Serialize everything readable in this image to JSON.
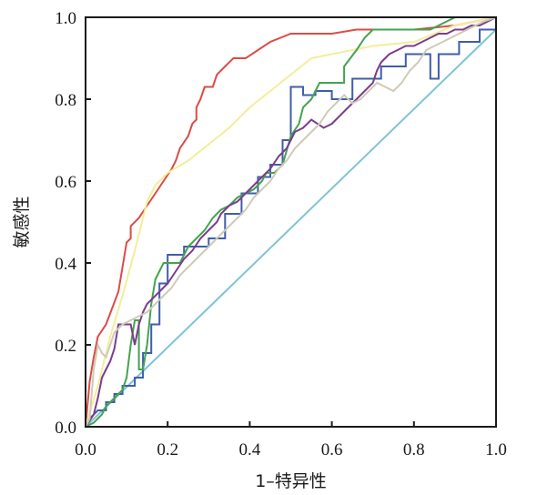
{
  "chart_data": {
    "type": "line",
    "xlabel": "1–特异性",
    "ylabel": "敏感性",
    "xlim": [
      0,
      1
    ],
    "ylim": [
      0,
      1
    ],
    "xticks": [
      0.0,
      0.2,
      0.4,
      0.6,
      0.8,
      1.0
    ],
    "yticks": [
      0.0,
      0.2,
      0.4,
      0.6,
      0.8,
      1.0
    ],
    "xtick_labels": [
      "0.0",
      "0.2",
      "0.4",
      "0.6",
      "0.8",
      "1.0"
    ],
    "ytick_labels": [
      "0.0",
      "0.2",
      "0.4",
      "0.6",
      "0.8",
      "1.0"
    ],
    "grid": false,
    "series": [
      {
        "color": "#7ec4d6",
        "points": [
          [
            0.0,
            0.0
          ],
          [
            1.0,
            0.97
          ]
        ]
      },
      {
        "color": "#dd4b45",
        "points": [
          [
            0.0,
            0.0
          ],
          [
            0.01,
            0.11
          ],
          [
            0.02,
            0.17
          ],
          [
            0.03,
            0.22
          ],
          [
            0.05,
            0.25
          ],
          [
            0.08,
            0.33
          ],
          [
            0.1,
            0.45
          ],
          [
            0.11,
            0.46
          ],
          [
            0.11,
            0.49
          ],
          [
            0.13,
            0.51
          ],
          [
            0.15,
            0.54
          ],
          [
            0.17,
            0.57
          ],
          [
            0.19,
            0.6
          ],
          [
            0.21,
            0.63
          ],
          [
            0.22,
            0.65
          ],
          [
            0.23,
            0.68
          ],
          [
            0.25,
            0.71
          ],
          [
            0.26,
            0.74
          ],
          [
            0.27,
            0.75
          ],
          [
            0.27,
            0.78
          ],
          [
            0.28,
            0.8
          ],
          [
            0.29,
            0.83
          ],
          [
            0.31,
            0.83
          ],
          [
            0.32,
            0.86
          ],
          [
            0.34,
            0.88
          ],
          [
            0.36,
            0.9
          ],
          [
            0.39,
            0.9
          ],
          [
            0.45,
            0.94
          ],
          [
            0.5,
            0.96
          ],
          [
            0.6,
            0.96
          ],
          [
            0.66,
            0.97
          ],
          [
            0.8,
            0.97
          ],
          [
            0.9,
            0.98
          ],
          [
            1.0,
            1.0
          ]
        ]
      },
      {
        "color": "#f2ee9a",
        "points": [
          [
            0.0,
            0.0
          ],
          [
            0.03,
            0.1
          ],
          [
            0.06,
            0.22
          ],
          [
            0.09,
            0.32
          ],
          [
            0.12,
            0.43
          ],
          [
            0.15,
            0.55
          ],
          [
            0.17,
            0.59
          ],
          [
            0.2,
            0.62
          ],
          [
            0.25,
            0.65
          ],
          [
            0.3,
            0.69
          ],
          [
            0.35,
            0.73
          ],
          [
            0.4,
            0.78
          ],
          [
            0.45,
            0.82
          ],
          [
            0.5,
            0.86
          ],
          [
            0.55,
            0.9
          ],
          [
            0.6,
            0.91
          ],
          [
            0.65,
            0.92
          ],
          [
            0.7,
            0.93
          ],
          [
            0.8,
            0.94
          ],
          [
            0.9,
            0.98
          ],
          [
            1.0,
            1.0
          ]
        ]
      },
      {
        "color": "#3f5ea8",
        "points": [
          [
            0.0,
            0.0
          ],
          [
            0.01,
            0.02
          ],
          [
            0.03,
            0.04
          ],
          [
            0.05,
            0.04
          ],
          [
            0.05,
            0.06
          ],
          [
            0.07,
            0.06
          ],
          [
            0.07,
            0.08
          ],
          [
            0.09,
            0.08
          ],
          [
            0.09,
            0.1
          ],
          [
            0.12,
            0.1
          ],
          [
            0.12,
            0.12
          ],
          [
            0.14,
            0.12
          ],
          [
            0.14,
            0.18
          ],
          [
            0.16,
            0.18
          ],
          [
            0.16,
            0.25
          ],
          [
            0.18,
            0.25
          ],
          [
            0.18,
            0.35
          ],
          [
            0.2,
            0.35
          ],
          [
            0.2,
            0.42
          ],
          [
            0.24,
            0.42
          ],
          [
            0.24,
            0.44
          ],
          [
            0.3,
            0.44
          ],
          [
            0.3,
            0.46
          ],
          [
            0.34,
            0.46
          ],
          [
            0.34,
            0.52
          ],
          [
            0.38,
            0.52
          ],
          [
            0.38,
            0.57
          ],
          [
            0.42,
            0.57
          ],
          [
            0.42,
            0.61
          ],
          [
            0.45,
            0.61
          ],
          [
            0.45,
            0.64
          ],
          [
            0.48,
            0.64
          ],
          [
            0.48,
            0.7
          ],
          [
            0.5,
            0.7
          ],
          [
            0.5,
            0.83
          ],
          [
            0.53,
            0.83
          ],
          [
            0.53,
            0.81
          ],
          [
            0.56,
            0.81
          ],
          [
            0.56,
            0.82
          ],
          [
            0.6,
            0.82
          ],
          [
            0.6,
            0.8
          ],
          [
            0.65,
            0.8
          ],
          [
            0.65,
            0.85
          ],
          [
            0.72,
            0.85
          ],
          [
            0.72,
            0.88
          ],
          [
            0.78,
            0.88
          ],
          [
            0.78,
            0.91
          ],
          [
            0.84,
            0.91
          ],
          [
            0.84,
            0.85
          ],
          [
            0.86,
            0.85
          ],
          [
            0.86,
            0.91
          ],
          [
            0.91,
            0.91
          ],
          [
            0.91,
            0.94
          ],
          [
            0.96,
            0.94
          ],
          [
            0.96,
            0.97
          ],
          [
            1.0,
            0.97
          ],
          [
            1.0,
            1.0
          ]
        ]
      },
      {
        "color": "#43a350",
        "points": [
          [
            0.0,
            0.0
          ],
          [
            0.02,
            0.01
          ],
          [
            0.04,
            0.03
          ],
          [
            0.05,
            0.05
          ],
          [
            0.07,
            0.07
          ],
          [
            0.09,
            0.09
          ],
          [
            0.1,
            0.12
          ],
          [
            0.11,
            0.2
          ],
          [
            0.12,
            0.26
          ],
          [
            0.13,
            0.26
          ],
          [
            0.13,
            0.14
          ],
          [
            0.14,
            0.14
          ],
          [
            0.15,
            0.2
          ],
          [
            0.16,
            0.3
          ],
          [
            0.17,
            0.36
          ],
          [
            0.18,
            0.38
          ],
          [
            0.19,
            0.4
          ],
          [
            0.23,
            0.4
          ],
          [
            0.25,
            0.44
          ],
          [
            0.27,
            0.46
          ],
          [
            0.29,
            0.48
          ],
          [
            0.31,
            0.51
          ],
          [
            0.33,
            0.53
          ],
          [
            0.35,
            0.54
          ],
          [
            0.37,
            0.56
          ],
          [
            0.39,
            0.57
          ],
          [
            0.41,
            0.58
          ],
          [
            0.43,
            0.6
          ],
          [
            0.44,
            0.62
          ],
          [
            0.46,
            0.62
          ],
          [
            0.48,
            0.64
          ],
          [
            0.5,
            0.71
          ],
          [
            0.52,
            0.74
          ],
          [
            0.53,
            0.78
          ],
          [
            0.55,
            0.8
          ],
          [
            0.57,
            0.84
          ],
          [
            0.63,
            0.84
          ],
          [
            0.63,
            0.88
          ],
          [
            0.66,
            0.92
          ],
          [
            0.68,
            0.95
          ],
          [
            0.7,
            0.97
          ],
          [
            0.84,
            0.97
          ],
          [
            0.88,
            0.99
          ],
          [
            0.9,
            1.0
          ],
          [
            1.0,
            1.0
          ]
        ]
      },
      {
        "color": "#7b3d8c",
        "points": [
          [
            0.0,
            0.0
          ],
          [
            0.02,
            0.03
          ],
          [
            0.03,
            0.07
          ],
          [
            0.04,
            0.12
          ],
          [
            0.05,
            0.14
          ],
          [
            0.06,
            0.16
          ],
          [
            0.07,
            0.19
          ],
          [
            0.08,
            0.25
          ],
          [
            0.11,
            0.25
          ],
          [
            0.12,
            0.2
          ],
          [
            0.13,
            0.25
          ],
          [
            0.14,
            0.28
          ],
          [
            0.15,
            0.3
          ],
          [
            0.17,
            0.32
          ],
          [
            0.18,
            0.33
          ],
          [
            0.2,
            0.35
          ],
          [
            0.22,
            0.38
          ],
          [
            0.24,
            0.41
          ],
          [
            0.26,
            0.43
          ],
          [
            0.28,
            0.46
          ],
          [
            0.3,
            0.48
          ],
          [
            0.32,
            0.5
          ],
          [
            0.33,
            0.52
          ],
          [
            0.35,
            0.54
          ],
          [
            0.37,
            0.55
          ],
          [
            0.39,
            0.57
          ],
          [
            0.41,
            0.59
          ],
          [
            0.43,
            0.61
          ],
          [
            0.45,
            0.63
          ],
          [
            0.47,
            0.66
          ],
          [
            0.49,
            0.68
          ],
          [
            0.5,
            0.7
          ],
          [
            0.51,
            0.72
          ],
          [
            0.53,
            0.73
          ],
          [
            0.55,
            0.75
          ],
          [
            0.58,
            0.73
          ],
          [
            0.6,
            0.74
          ],
          [
            0.62,
            0.76
          ],
          [
            0.64,
            0.78
          ],
          [
            0.66,
            0.8
          ],
          [
            0.68,
            0.82
          ],
          [
            0.7,
            0.84
          ],
          [
            0.71,
            0.87
          ],
          [
            0.72,
            0.89
          ],
          [
            0.74,
            0.91
          ],
          [
            0.76,
            0.92
          ],
          [
            0.78,
            0.93
          ],
          [
            0.8,
            0.93
          ],
          [
            0.82,
            0.94
          ],
          [
            0.84,
            0.95
          ],
          [
            0.86,
            0.96
          ],
          [
            0.88,
            0.96
          ],
          [
            0.9,
            0.97
          ],
          [
            0.92,
            0.97
          ],
          [
            0.94,
            0.98
          ],
          [
            0.96,
            0.98
          ],
          [
            0.98,
            0.99
          ],
          [
            1.0,
            1.0
          ]
        ]
      },
      {
        "color": "#cfcab8",
        "points": [
          [
            0.0,
            0.0
          ],
          [
            0.01,
            0.02
          ],
          [
            0.02,
            0.14
          ],
          [
            0.03,
            0.2
          ],
          [
            0.04,
            0.18
          ],
          [
            0.05,
            0.17
          ],
          [
            0.06,
            0.2
          ],
          [
            0.07,
            0.23
          ],
          [
            0.08,
            0.24
          ],
          [
            0.09,
            0.25
          ],
          [
            0.11,
            0.26
          ],
          [
            0.13,
            0.27
          ],
          [
            0.15,
            0.28
          ],
          [
            0.17,
            0.3
          ],
          [
            0.19,
            0.32
          ],
          [
            0.21,
            0.34
          ],
          [
            0.23,
            0.37
          ],
          [
            0.25,
            0.39
          ],
          [
            0.27,
            0.41
          ],
          [
            0.29,
            0.43
          ],
          [
            0.31,
            0.45
          ],
          [
            0.33,
            0.47
          ],
          [
            0.35,
            0.49
          ],
          [
            0.37,
            0.51
          ],
          [
            0.39,
            0.53
          ],
          [
            0.41,
            0.56
          ],
          [
            0.43,
            0.58
          ],
          [
            0.45,
            0.6
          ],
          [
            0.47,
            0.63
          ],
          [
            0.49,
            0.65
          ],
          [
            0.51,
            0.68
          ],
          [
            0.53,
            0.7
          ],
          [
            0.55,
            0.72
          ],
          [
            0.57,
            0.74
          ],
          [
            0.59,
            0.77
          ],
          [
            0.61,
            0.79
          ],
          [
            0.63,
            0.81
          ],
          [
            0.65,
            0.79
          ],
          [
            0.67,
            0.8
          ],
          [
            0.69,
            0.82
          ],
          [
            0.71,
            0.84
          ],
          [
            0.73,
            0.83
          ],
          [
            0.75,
            0.82
          ],
          [
            0.77,
            0.84
          ],
          [
            0.79,
            0.87
          ],
          [
            0.81,
            0.89
          ],
          [
            0.83,
            0.92
          ],
          [
            0.85,
            0.93
          ],
          [
            0.87,
            0.94
          ],
          [
            0.89,
            0.95
          ],
          [
            0.91,
            0.96
          ],
          [
            0.93,
            0.97
          ],
          [
            0.95,
            0.98
          ],
          [
            0.97,
            0.99
          ],
          [
            1.0,
            1.0
          ]
        ]
      }
    ]
  }
}
